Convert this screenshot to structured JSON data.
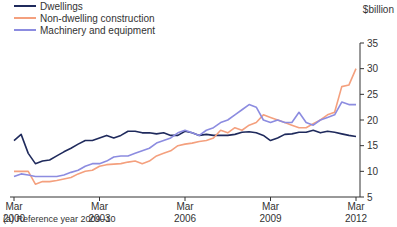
{
  "chart_data": {
    "type": "line",
    "y_label": "$billion",
    "footnote": "(a) Reference year 2009–10",
    "categories": [
      "Mar 2000",
      null,
      null,
      null,
      null,
      null,
      null,
      null,
      null,
      null,
      null,
      null,
      "Mar 2003",
      null,
      null,
      null,
      null,
      null,
      null,
      null,
      null,
      null,
      null,
      null,
      "Mar 2006",
      null,
      null,
      null,
      null,
      null,
      null,
      null,
      null,
      null,
      null,
      null,
      "Mar 2009",
      null,
      null,
      null,
      null,
      null,
      null,
      null,
      null,
      null,
      null,
      null,
      "Mar 2012"
    ],
    "series": [
      {
        "name": "Dwellings",
        "color": "#1f2a5c",
        "values": [
          16,
          17.2,
          13.5,
          11.5,
          12,
          12.2,
          13,
          13.8,
          14.5,
          15.3,
          16,
          16,
          16.5,
          17,
          16.5,
          17,
          17.8,
          17.8,
          17.5,
          17.5,
          17.3,
          17.5,
          17,
          17,
          17.8,
          17.5,
          17,
          17.2,
          17,
          17,
          17,
          17.2,
          17.6,
          17.7,
          17.5,
          17,
          16,
          16.5,
          17.2,
          17.3,
          17.6,
          17.6,
          18,
          17.5,
          17.8,
          17.6,
          17.3,
          17,
          16.8
        ]
      },
      {
        "name": "Non-dwelling construction",
        "color": "#f4a07e",
        "values": [
          10,
          10,
          10,
          7.5,
          8,
          8,
          8.2,
          8.5,
          8.8,
          9.5,
          10,
          10.2,
          11,
          11.3,
          11.4,
          11.5,
          11.8,
          12,
          11.5,
          12,
          13,
          13.5,
          14,
          15,
          15.3,
          15.5,
          15.8,
          16,
          16.5,
          18,
          17.5,
          18.5,
          18,
          19,
          19.5,
          21,
          20.5,
          20,
          19.5,
          19,
          18.5,
          18.5,
          19.3,
          20,
          21,
          21.5,
          26.5,
          26.8,
          30
        ]
      },
      {
        "name": "Machinery and equipment",
        "color": "#8c8ce0",
        "values": [
          9,
          9.5,
          9.3,
          9,
          9,
          9,
          9,
          9.3,
          9.8,
          10.2,
          11,
          11.5,
          11.5,
          12,
          12.8,
          13,
          13,
          13.5,
          14,
          14.5,
          15.5,
          16,
          16.5,
          17.5,
          18,
          17.5,
          17,
          18,
          18.5,
          19.5,
          20,
          21,
          22,
          23,
          22.5,
          20,
          19.5,
          20,
          19.5,
          19.5,
          21.5,
          19.5,
          19,
          20,
          20.5,
          21,
          23.5,
          23,
          23
        ]
      }
    ],
    "ylim": [
      5,
      35
    ],
    "yticks": [
      5,
      10,
      15,
      20,
      25,
      30,
      35
    ],
    "grid": false,
    "legend": "top-left"
  }
}
